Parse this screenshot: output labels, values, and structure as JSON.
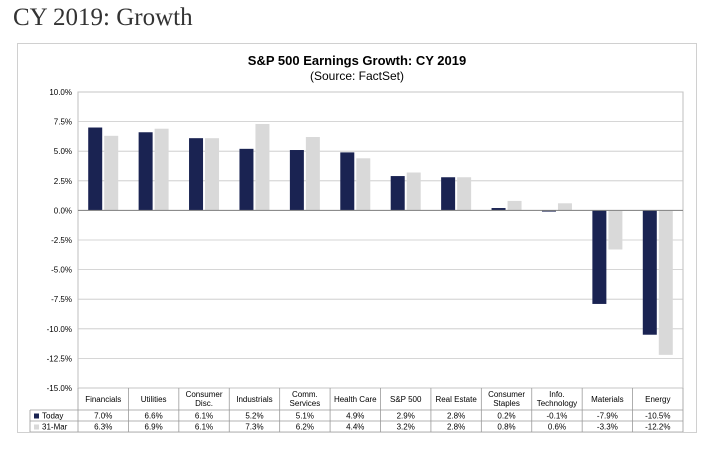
{
  "page": {
    "heading": "CY 2019: Growth"
  },
  "colors": {
    "today": "#1a2352",
    "mar31": "#d9d9d9",
    "grid": "#c8c8c8",
    "text": "#000000"
  },
  "chart_data": {
    "type": "bar",
    "title": "S&P 500 Earnings Growth: CY 2019",
    "subtitle": "(Source: FactSet)",
    "xlabel": "",
    "ylabel": "",
    "ylim": [
      -15,
      10
    ],
    "yticks": [
      10,
      7.5,
      5,
      2.5,
      0,
      -2.5,
      -5,
      -7.5,
      -10,
      -12.5,
      -15
    ],
    "ytick_labels": [
      "10.0%",
      "7.5%",
      "5.0%",
      "2.5%",
      "0.0%",
      "-2.5%",
      "-5.0%",
      "-7.5%",
      "-10.0%",
      "-12.5%",
      "-15.0%"
    ],
    "grid": true,
    "categories": [
      [
        "Financials"
      ],
      [
        "Utilities"
      ],
      [
        "Consumer",
        "Disc."
      ],
      [
        "Industrials"
      ],
      [
        "Comm.",
        "Services"
      ],
      [
        "Health Care"
      ],
      [
        "S&P 500"
      ],
      [
        "Real Estate"
      ],
      [
        "Consumer",
        "Staples"
      ],
      [
        "Info.",
        "Technology"
      ],
      [
        "Materials"
      ],
      [
        "Energy"
      ]
    ],
    "series": [
      {
        "name": "Today",
        "values": [
          7.0,
          6.6,
          6.1,
          5.2,
          5.1,
          4.9,
          2.9,
          2.8,
          0.2,
          -0.1,
          -7.9,
          -10.5
        ],
        "labels": [
          "7.0%",
          "6.6%",
          "6.1%",
          "5.2%",
          "5.1%",
          "4.9%",
          "2.9%",
          "2.8%",
          "0.2%",
          "-0.1%",
          "-7.9%",
          "-10.5%"
        ]
      },
      {
        "name": "31-Mar",
        "values": [
          6.3,
          6.9,
          6.1,
          7.3,
          6.2,
          4.4,
          3.2,
          2.8,
          0.8,
          0.6,
          -3.3,
          -12.2
        ],
        "labels": [
          "6.3%",
          "6.9%",
          "6.1%",
          "7.3%",
          "6.2%",
          "4.4%",
          "3.2%",
          "2.8%",
          "0.8%",
          "0.6%",
          "-3.3%",
          "-12.2%"
        ]
      }
    ]
  }
}
